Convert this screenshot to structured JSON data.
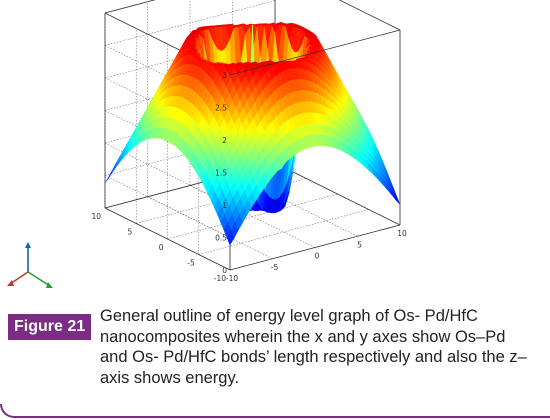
{
  "chart_data": {
    "type": "surface3d",
    "title": "",
    "xlabel": "",
    "ylabel": "",
    "zlabel": "",
    "x_ticks": [
      "-10",
      "-5",
      "0",
      "5",
      "10"
    ],
    "y_ticks": [
      "-10",
      "-5",
      "0",
      "5",
      "10"
    ],
    "z_ticks": [
      "0",
      "0.5",
      "1",
      "1.5",
      "2",
      "2.5",
      "3"
    ],
    "xlim": [
      -10,
      10
    ],
    "ylim": [
      -10,
      10
    ],
    "zlim": [
      0,
      3
    ],
    "grid": true,
    "colormap": "jet",
    "shape": "radial well: low flat bottom near center with a narrow central spike, steep walls rising to a high rim, then falling off toward the corners"
  },
  "caption": {
    "label": "Figure 21",
    "text": "General outline of energy level graph of Os- Pd/HfC nanocomposites wherein the x and y axes show Os–Pd and Os- Pd/HfC bonds’ length respectively and also the z–axis shows energy."
  },
  "colors": {
    "accent": "#7b2c84",
    "axis_x": "#2a9d3a",
    "axis_y": "#c0392b",
    "axis_z": "#1a5fb4"
  }
}
